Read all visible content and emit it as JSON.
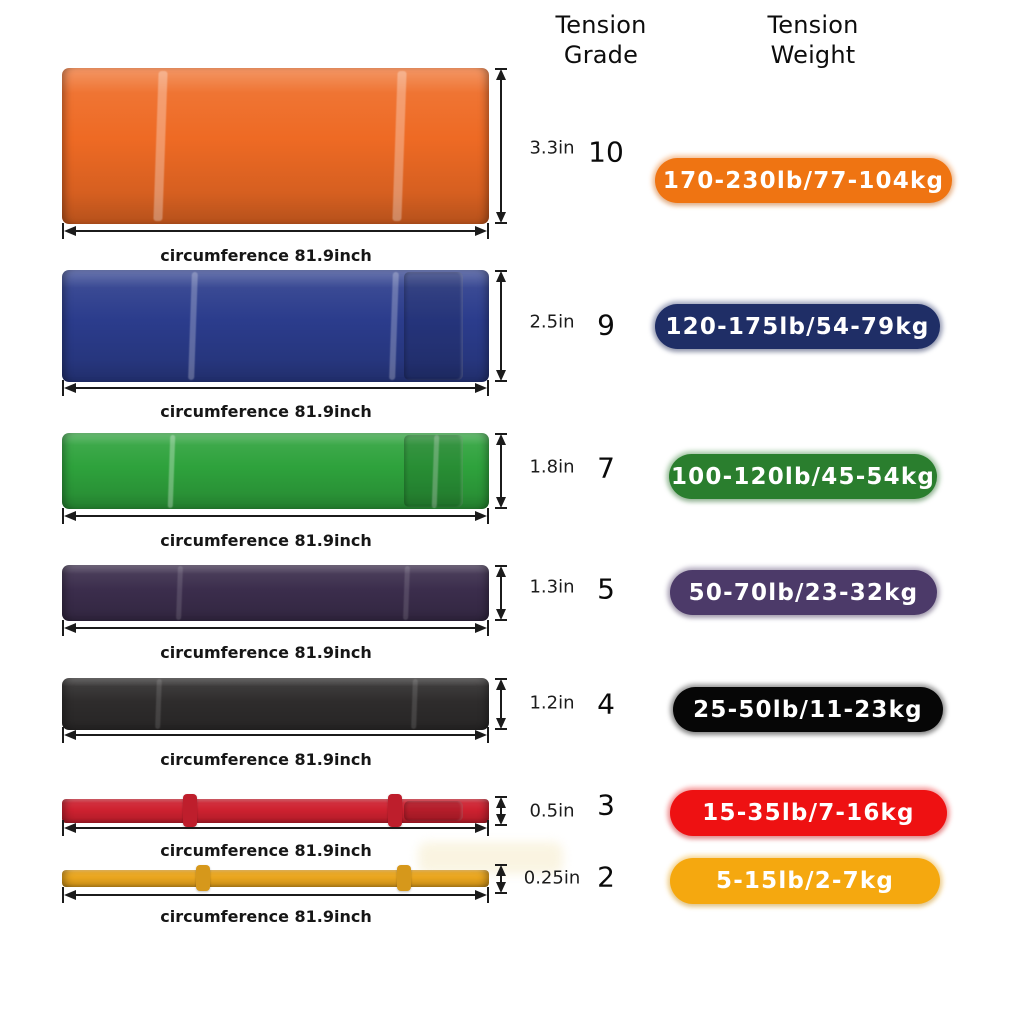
{
  "headers": {
    "tension_grade": "Tension Grade",
    "tension_weight": "Tension Weight"
  },
  "bands": [
    {
      "color_name": "orange",
      "band_color": "#EE6A24",
      "pill_color": "#EF7412",
      "width_label": "3.3in",
      "tension_grade": "10",
      "tension_weight": "170-230lb/77-104kg",
      "circumference_label": "circumference 81.9inch"
    },
    {
      "color_name": "navy",
      "band_color": "#2B3C8C",
      "pill_color": "#1F2E66",
      "width_label": "2.5in",
      "tension_grade": "9",
      "tension_weight": "120-175lb/54-79kg",
      "circumference_label": "circumference 81.9inch"
    },
    {
      "color_name": "green",
      "band_color": "#2EA23C",
      "pill_color": "#2A7E2E",
      "width_label": "1.8in",
      "tension_grade": "7",
      "tension_weight": "100-120lb/45-54kg",
      "circumference_label": "circumference 81.9inch"
    },
    {
      "color_name": "purple",
      "band_color": "#3B2D4C",
      "pill_color": "#4C3A69",
      "width_label": "1.3in",
      "tension_grade": "5",
      "tension_weight": "50-70lb/23-32kg",
      "circumference_label": "circumference 81.9inch"
    },
    {
      "color_name": "black",
      "band_color": "#2E2C2C",
      "pill_color": "#060606",
      "width_label": "1.2in",
      "tension_grade": "4",
      "tension_weight": "25-50lb/11-23kg",
      "circumference_label": "circumference 81.9inch"
    },
    {
      "color_name": "red",
      "band_color": "#CE2130",
      "pill_color": "#EE1112",
      "width_label": "0.5in",
      "tension_grade": "3",
      "tension_weight": "15-35lb/7-16kg",
      "circumference_label": "circumference 81.9inch"
    },
    {
      "color_name": "yellow",
      "band_color": "#E9A51D",
      "pill_color": "#F5A80F",
      "width_label": "0.25in",
      "tension_grade": "2",
      "tension_weight": "5-15lb/2-7kg",
      "circumference_label": "circumference 81.9inch"
    }
  ]
}
